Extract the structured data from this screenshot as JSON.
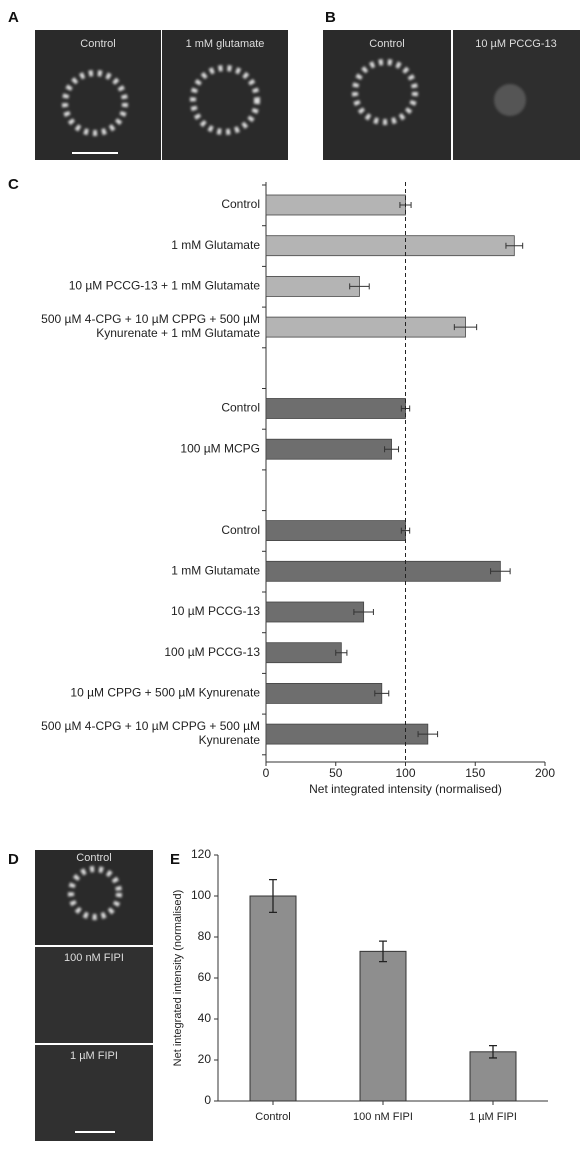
{
  "panel_labels": [
    "A",
    "B",
    "C",
    "D",
    "E"
  ],
  "images": {
    "A": [
      "Control",
      "1 mM glutamate"
    ],
    "B": [
      "Control",
      "10 µM PCCG-13"
    ],
    "D": [
      "Control",
      "100 nM FIPI",
      "1 µM FIPI"
    ]
  },
  "chart_data": [
    {
      "type": "hbar",
      "x_label": "Net integrated intensity (normalised)",
      "categories": [
        "Control",
        "1 mM Glutamate",
        "10 µM PCCG-13 + 1 mM Glutamate",
        "500 µM 4-CPG + 10 µM CPPG + 500 µM\nKynurenate + 1 mM Glutamate",
        "Control",
        "100 µM MCPG",
        "Control",
        "1 mM Glutamate",
        "10 µM PCCG-13",
        "100 µM PCCG-13",
        "10 µM CPPG + 500 µM Kynurenate",
        "500 µM 4-CPG + 10 µM CPPG + 500 µM\nKynurenate"
      ],
      "values": [
        100,
        178,
        67,
        143,
        100,
        90,
        100,
        168,
        70,
        54,
        83,
        116
      ],
      "errors": [
        4,
        6,
        7,
        8,
        3,
        5,
        3,
        7,
        7,
        4,
        5,
        7
      ],
      "colors": [
        "#b4b4b4",
        "#b4b4b4",
        "#b4b4b4",
        "#b4b4b4",
        "#6e6e6e",
        "#6e6e6e",
        "#6e6e6e",
        "#6e6e6e",
        "#6e6e6e",
        "#6e6e6e",
        "#6e6e6e",
        "#6e6e6e"
      ],
      "xlim": [
        0,
        200
      ],
      "xticks": [
        0,
        50,
        100,
        150,
        200
      ],
      "reference_line": 100
    },
    {
      "type": "bar",
      "y_label": "Net integrated intensity (normalised)",
      "categories": [
        "Control",
        "100 nM FIPI",
        "1 µM FIPI"
      ],
      "values": [
        100,
        73,
        24
      ],
      "errors": [
        8,
        5,
        3
      ],
      "color": "#8e8e8e",
      "ylim": [
        0,
        120
      ],
      "yticks": [
        0,
        20,
        40,
        60,
        80,
        100,
        120
      ]
    }
  ]
}
